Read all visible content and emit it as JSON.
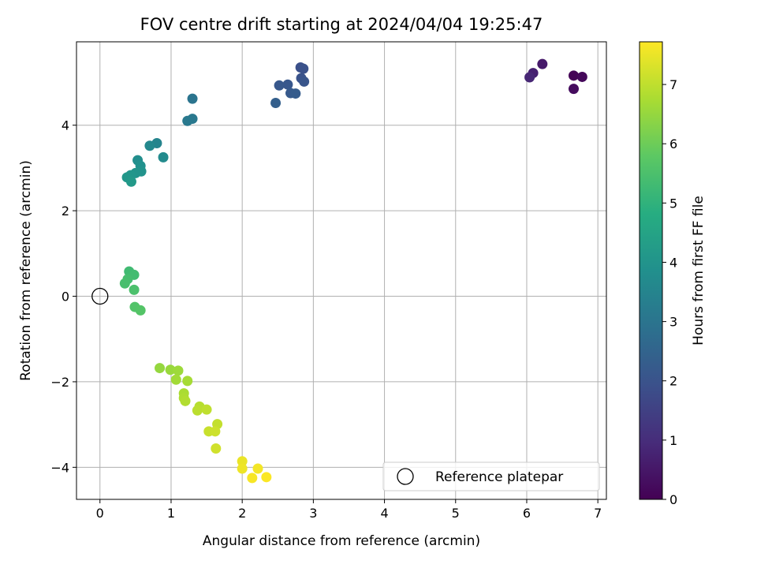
{
  "chart_data": {
    "type": "scatter",
    "title": "FOV centre drift starting at 2024/04/04 19:25:47",
    "xlabel": "Angular distance from reference (arcmin)",
    "ylabel": "Rotation from reference (arcmin)",
    "xlim": [
      -0.33,
      7.12
    ],
    "ylim": [
      -4.75,
      5.95
    ],
    "xticks": [
      0,
      1,
      2,
      3,
      4,
      5,
      6,
      7
    ],
    "yticks": [
      -4,
      -2,
      0,
      2,
      4
    ],
    "grid": true,
    "colormap": "viridis",
    "colorbar": {
      "label": "Hours from first FF file",
      "range": [
        0,
        7.72
      ],
      "ticks": [
        0,
        1,
        2,
        3,
        4,
        5,
        6,
        7
      ]
    },
    "legend": {
      "position": "lower-right",
      "entries": [
        {
          "label": "Reference platepar",
          "marker": "open-circle"
        }
      ]
    },
    "reference_point": {
      "x": 0,
      "y": 0
    },
    "points": [
      {
        "x": 6.66,
        "y": 5.16,
        "t": 0.05
      },
      {
        "x": 6.78,
        "y": 5.13,
        "t": 0.15
      },
      {
        "x": 6.66,
        "y": 4.85,
        "t": 0.25
      },
      {
        "x": 6.22,
        "y": 5.43,
        "t": 0.55
      },
      {
        "x": 6.09,
        "y": 5.22,
        "t": 0.7
      },
      {
        "x": 6.04,
        "y": 5.12,
        "t": 0.85
      },
      {
        "x": 2.82,
        "y": 5.35,
        "t": 1.9
      },
      {
        "x": 2.86,
        "y": 5.32,
        "t": 1.95
      },
      {
        "x": 2.83,
        "y": 5.1,
        "t": 2.0
      },
      {
        "x": 2.87,
        "y": 5.02,
        "t": 2.05
      },
      {
        "x": 2.64,
        "y": 4.95,
        "t": 2.1
      },
      {
        "x": 2.52,
        "y": 4.93,
        "t": 2.15
      },
      {
        "x": 2.68,
        "y": 4.75,
        "t": 2.2
      },
      {
        "x": 2.75,
        "y": 4.74,
        "t": 2.25
      },
      {
        "x": 2.47,
        "y": 4.52,
        "t": 2.35
      },
      {
        "x": 1.3,
        "y": 4.62,
        "t": 3.0
      },
      {
        "x": 1.3,
        "y": 4.15,
        "t": 3.1
      },
      {
        "x": 1.23,
        "y": 4.1,
        "t": 3.15
      },
      {
        "x": 0.8,
        "y": 3.58,
        "t": 3.5
      },
      {
        "x": 0.7,
        "y": 3.52,
        "t": 3.6
      },
      {
        "x": 0.89,
        "y": 3.25,
        "t": 3.7
      },
      {
        "x": 0.53,
        "y": 3.18,
        "t": 3.8
      },
      {
        "x": 0.57,
        "y": 3.05,
        "t": 3.9
      },
      {
        "x": 0.58,
        "y": 2.92,
        "t": 3.95
      },
      {
        "x": 0.5,
        "y": 2.88,
        "t": 4.0
      },
      {
        "x": 0.43,
        "y": 2.83,
        "t": 4.05
      },
      {
        "x": 0.38,
        "y": 2.78,
        "t": 4.1
      },
      {
        "x": 0.44,
        "y": 2.68,
        "t": 4.15
      },
      {
        "x": 0.41,
        "y": 0.58,
        "t": 5.3
      },
      {
        "x": 0.48,
        "y": 0.5,
        "t": 5.35
      },
      {
        "x": 0.39,
        "y": 0.4,
        "t": 5.4
      },
      {
        "x": 0.35,
        "y": 0.3,
        "t": 5.45
      },
      {
        "x": 0.48,
        "y": 0.15,
        "t": 5.5
      },
      {
        "x": 0.49,
        "y": -0.25,
        "t": 5.6
      },
      {
        "x": 0.57,
        "y": -0.33,
        "t": 5.65
      },
      {
        "x": 0.84,
        "y": -1.68,
        "t": 6.5
      },
      {
        "x": 0.99,
        "y": -1.72,
        "t": 6.55
      },
      {
        "x": 1.1,
        "y": -1.74,
        "t": 6.6
      },
      {
        "x": 1.07,
        "y": -1.95,
        "t": 6.65
      },
      {
        "x": 1.23,
        "y": -1.98,
        "t": 6.7
      },
      {
        "x": 1.18,
        "y": -2.27,
        "t": 6.75
      },
      {
        "x": 1.18,
        "y": -2.38,
        "t": 6.8
      },
      {
        "x": 1.2,
        "y": -2.45,
        "t": 6.85
      },
      {
        "x": 1.4,
        "y": -2.58,
        "t": 6.9
      },
      {
        "x": 1.37,
        "y": -2.67,
        "t": 6.95
      },
      {
        "x": 1.5,
        "y": -2.65,
        "t": 7.0
      },
      {
        "x": 1.65,
        "y": -2.99,
        "t": 7.05
      },
      {
        "x": 1.53,
        "y": -3.16,
        "t": 7.1
      },
      {
        "x": 1.62,
        "y": -3.16,
        "t": 7.15
      },
      {
        "x": 1.63,
        "y": -3.56,
        "t": 7.2
      },
      {
        "x": 2.0,
        "y": -3.86,
        "t": 7.5
      },
      {
        "x": 2.0,
        "y": -4.03,
        "t": 7.55
      },
      {
        "x": 2.22,
        "y": -4.03,
        "t": 7.6
      },
      {
        "x": 2.14,
        "y": -4.25,
        "t": 7.65
      },
      {
        "x": 2.34,
        "y": -4.23,
        "t": 7.7
      }
    ]
  }
}
